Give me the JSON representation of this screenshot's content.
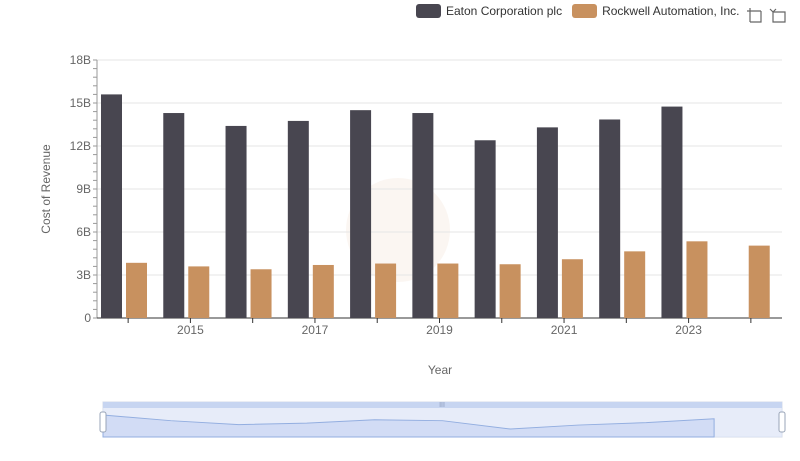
{
  "legend": {
    "items": [
      {
        "label": "Eaton Corporation plc",
        "color": "#484650"
      },
      {
        "label": "Rockwell Automation, Inc.",
        "color": "#c8915f"
      }
    ]
  },
  "toolbox": {
    "icons": [
      "zoom-icon",
      "restore-icon"
    ]
  },
  "chart_data": {
    "type": "bar",
    "xlabel": "Year",
    "ylabel": "Cost of Revenue",
    "categories": [
      "2014",
      "2015",
      "2016",
      "2017",
      "2018",
      "2019",
      "2020",
      "2021",
      "2022",
      "2023",
      "2024"
    ],
    "x_tick_labels": [
      "2015",
      "2017",
      "2019",
      "2021",
      "2023"
    ],
    "y_ticks": [
      0,
      3000000000,
      6000000000,
      9000000000,
      12000000000,
      15000000000,
      18000000000
    ],
    "y_tick_labels": [
      "0",
      "3B",
      "6B",
      "9B",
      "12B",
      "15B",
      "18B"
    ],
    "ylim": [
      0,
      18000000000
    ],
    "grid": true,
    "legend_position": "top-right",
    "series": [
      {
        "name": "Eaton Corporation plc",
        "color": "#484650",
        "values": [
          15600000000,
          14300000000,
          13400000000,
          13750000000,
          14500000000,
          14300000000,
          12400000000,
          13300000000,
          13850000000,
          14750000000,
          null
        ]
      },
      {
        "name": "Rockwell Automation, Inc.",
        "color": "#c8915f",
        "values": [
          3850000000,
          3600000000,
          3400000000,
          3700000000,
          3800000000,
          3800000000,
          3750000000,
          4100000000,
          4650000000,
          5350000000,
          5050000000
        ]
      }
    ]
  },
  "data_zoom": {
    "start_percent": 0,
    "end_percent": 100
  }
}
